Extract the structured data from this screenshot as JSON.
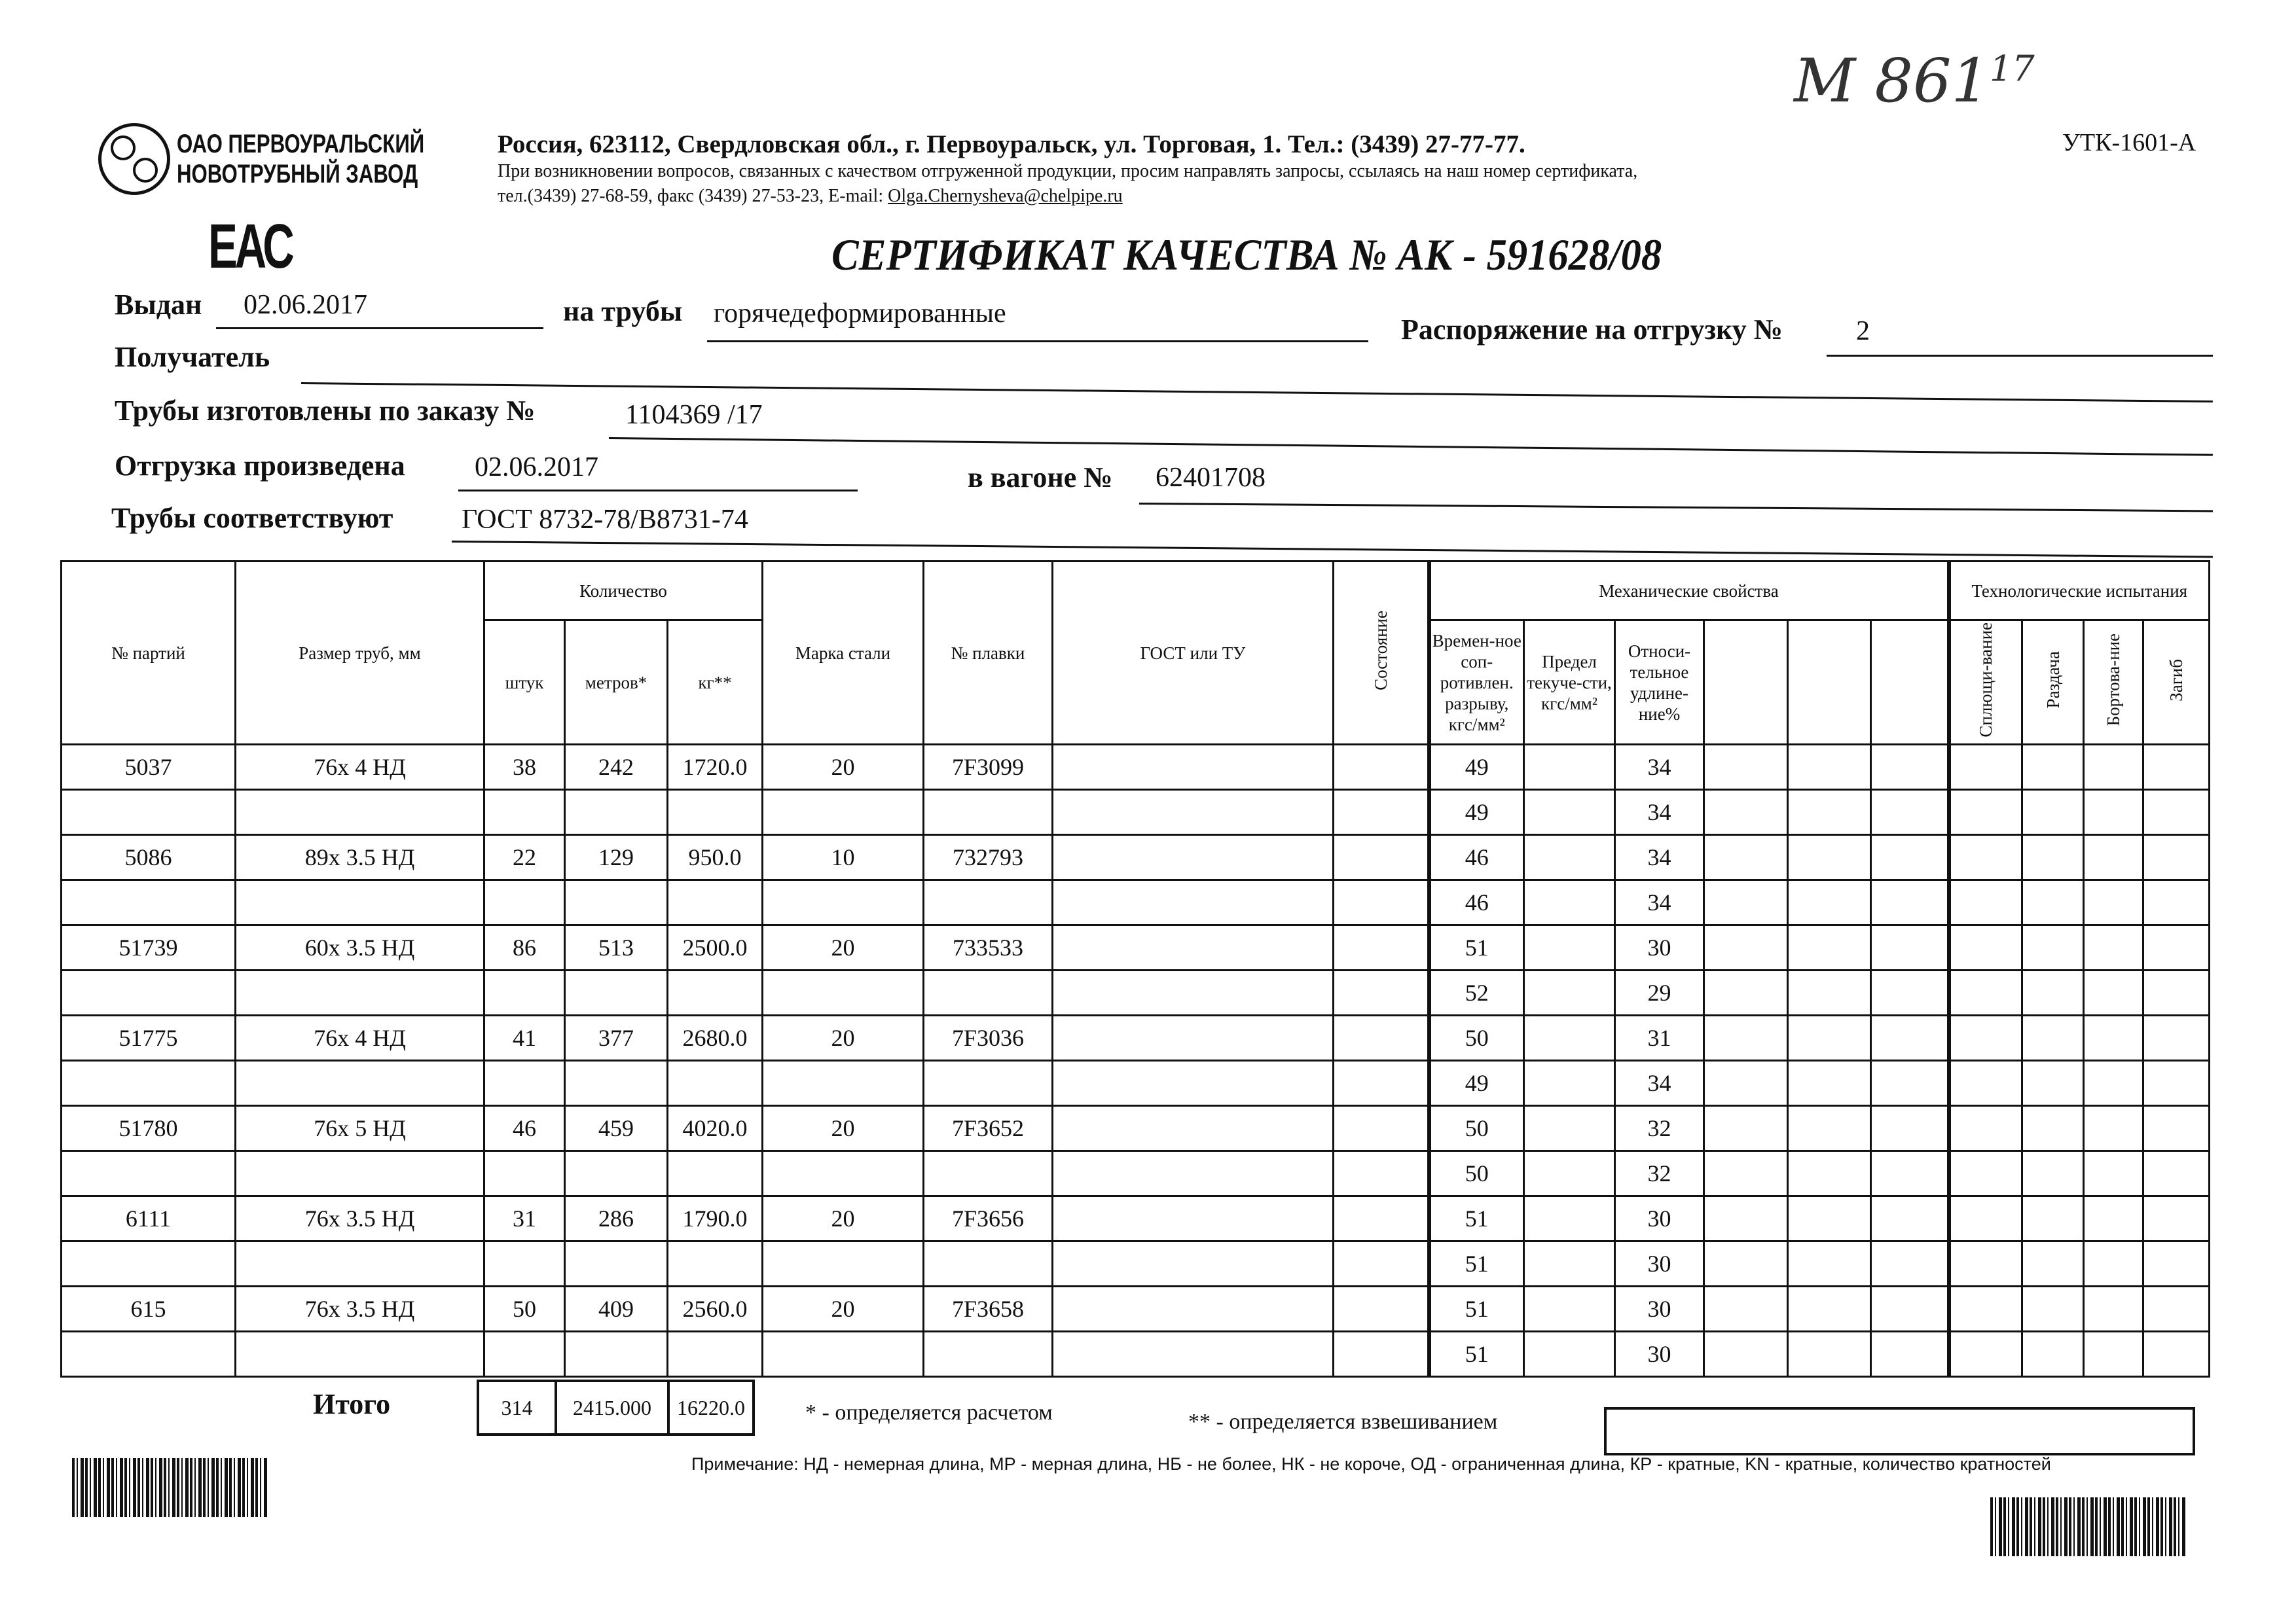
{
  "handwritten": {
    "number": "М 861",
    "suffix": "17"
  },
  "form_code": "УТК-1601-А",
  "company": {
    "logo_line1": "ОАО ПЕРВОУРАЛЬСКИЙ",
    "logo_line2": "НОВОТРУБНЫЙ ЗАВОД",
    "address": "Россия, 623112, Свердловская обл., г. Первоуральск, ул. Торговая, 1. Тел.: (3439) 27-77-77.",
    "contact_note": "При возникновении вопросов, связанных с качеством отгруженной продукции, просим направлять запросы, ссылаясь на наш номер сертификата,",
    "contact_phones": "тел.(3439) 27-68-59, факс (3439) 27-53-23,  E-mail: ",
    "email": "Olga.Chernysheva@chelpipe.ru"
  },
  "eac_mark": "ЕАС",
  "title": "СЕРТИФИКАТ КАЧЕСТВА   №  АК - 591628/08",
  "fields": {
    "issued_label": "Выдан",
    "issued_value": "02.06.2017",
    "pipes_label": "на трубы",
    "pipes_value": "горячедеформированные",
    "order_label": "Распоряжение на отгрузку №",
    "order_value": "2",
    "recipient_label": "Получатель",
    "recipient_value": "",
    "made_label": "Трубы изготовлены по заказу №",
    "made_value": "1104369   /17",
    "shipped_label": "Отгрузка произведена",
    "shipped_value": "02.06.2017",
    "wagon_label": "в вагоне №",
    "wagon_value": "62401708",
    "conform_label": "Трубы соответствуют",
    "conform_value": "ГОСТ 8732-78/В8731-74"
  },
  "table": {
    "headers": {
      "batch": "№ партий",
      "size": "Размер труб, мм",
      "quantity": "Количество",
      "pieces": "штук",
      "meters": "метров*",
      "kg": "кг**",
      "steel": "Марка стали",
      "heat": "№ плавки",
      "gost": "ГОСТ или ТУ",
      "state": "Состояние",
      "mech": "Механические свойства",
      "tensile": "Времен-ное соп-ротивлен. разрыву, кгс/мм²",
      "yield": "Предел текуче-сти, кгс/мм²",
      "elong": "Относи-тельное удлине-ние%",
      "tech": "Технологические испытания",
      "flatten": "Сплющи-вание",
      "expand": "Раздача",
      "flange": "Бортова-ние",
      "bend": "Загиб"
    },
    "batches": [
      {
        "batch": "5037",
        "size": "76x 4 НД",
        "pieces": "38",
        "meters": "242",
        "kg": "1720.0",
        "steel": "20",
        "heat": "7F3099"
      },
      {
        "batch": "5086",
        "size": "89x 3.5 НД",
        "pieces": "22",
        "meters": "129",
        "kg": "950.0",
        "steel": "10",
        "heat": "732793"
      },
      {
        "batch": "51739",
        "size": "60x 3.5 НД",
        "pieces": "86",
        "meters": "513",
        "kg": "2500.0",
        "steel": "20",
        "heat": "733533"
      },
      {
        "batch": "51775",
        "size": "76x 4 НД",
        "pieces": "41",
        "meters": "377",
        "kg": "2680.0",
        "steel": "20",
        "heat": "7F3036"
      },
      {
        "batch": "51780",
        "size": "76x 5 НД",
        "pieces": "46",
        "meters": "459",
        "kg": "4020.0",
        "steel": "20",
        "heat": "7F3652"
      },
      {
        "batch": "6111",
        "size": "76x 3.5 НД",
        "pieces": "31",
        "meters": "286",
        "kg": "1790.0",
        "steel": "20",
        "heat": "7F3656"
      },
      {
        "batch": "615",
        "size": "76x 3.5 НД",
        "pieces": "50",
        "meters": "409",
        "kg": "2560.0",
        "steel": "20",
        "heat": "7F3658"
      }
    ],
    "mechanical": [
      {
        "tensile": "49",
        "elong": "34"
      },
      {
        "tensile": "49",
        "elong": "34"
      },
      {
        "tensile": "46",
        "elong": "34"
      },
      {
        "tensile": "46",
        "elong": "34"
      },
      {
        "tensile": "51",
        "elong": "30"
      },
      {
        "tensile": "52",
        "elong": "29"
      },
      {
        "tensile": "50",
        "elong": "31"
      },
      {
        "tensile": "49",
        "elong": "34"
      },
      {
        "tensile": "50",
        "elong": "32"
      },
      {
        "tensile": "50",
        "elong": "32"
      },
      {
        "tensile": "51",
        "elong": "30"
      },
      {
        "tensile": "51",
        "elong": "30"
      },
      {
        "tensile": "51",
        "elong": "30"
      },
      {
        "tensile": "51",
        "elong": "30"
      }
    ],
    "totals": {
      "label": "Итого",
      "pieces": "314",
      "meters": "2415.000",
      "kg": "16220.0"
    }
  },
  "footnotes": {
    "calc": "* - определяется расчетом",
    "weigh": "** - определяется взвешиванием",
    "note": "Примечание: НД - немерная длина, МР - мерная длина, НБ - не более, НК - не короче, ОД - ограниченная длина, КР - кратные, KN - кратные, количество кратностей"
  }
}
